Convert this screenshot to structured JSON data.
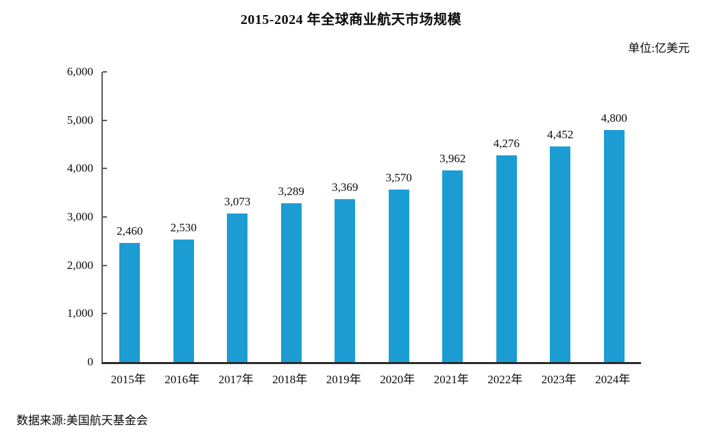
{
  "page": {
    "title": "2015-2024 年全球商业航天市场规模",
    "unit_label": "单位:亿美元",
    "source": "数据来源:美国航天基金会"
  },
  "colors": {
    "bar": "#1b9dd4",
    "axis_y": "#595959",
    "axis_x": "#2b2b2b",
    "text": "#0a0a0a",
    "background": "#ffffff"
  },
  "chart_data": {
    "type": "bar",
    "title": "2015-2024 年全球商业航天市场规模",
    "unit": "亿美元",
    "categories": [
      "2015年",
      "2016年",
      "2017年",
      "2018年",
      "2019年",
      "2020年",
      "2021年",
      "2022年",
      "2023年",
      "2024年"
    ],
    "values": [
      2460,
      2530,
      3073,
      3289,
      3369,
      3570,
      3962,
      4276,
      4452,
      4800
    ],
    "value_labels": [
      "2,460",
      "2,530",
      "3,073",
      "3,289",
      "3,369",
      "3,570",
      "3,962",
      "4,276",
      "4,452",
      "4,800"
    ],
    "xlabel": "",
    "ylabel": "",
    "ylim": [
      0,
      6000
    ],
    "yticks": [
      0,
      1000,
      2000,
      3000,
      4000,
      5000,
      6000
    ],
    "ytick_labels": [
      "0",
      "1,000",
      "2,000",
      "3,000",
      "4,000",
      "5,000",
      "6,000"
    ],
    "grid": false,
    "legend": "none",
    "source": "数据来源:美国航天基金会"
  }
}
